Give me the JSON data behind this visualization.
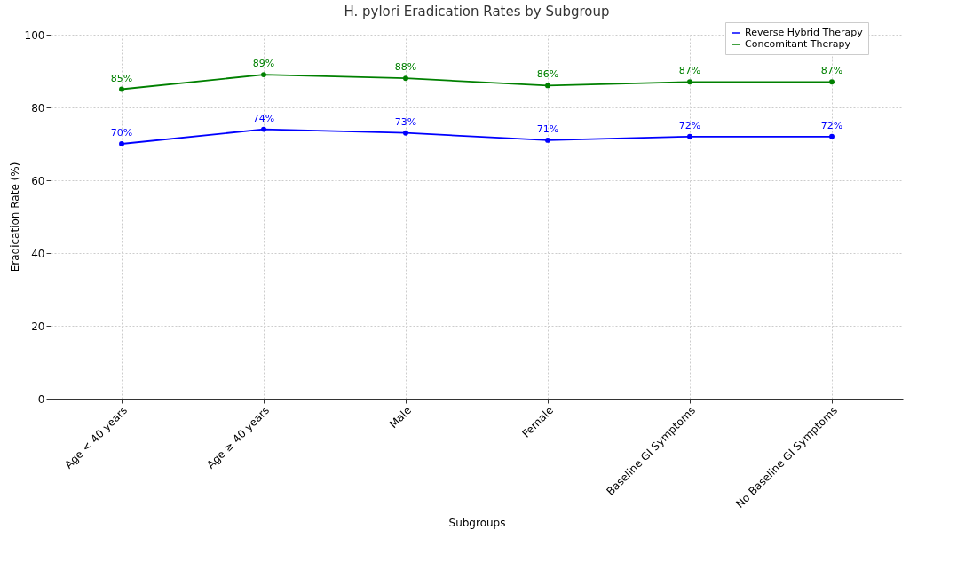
{
  "chart_data": {
    "type": "line",
    "title": "H. pylori Eradication Rates by Subgroup",
    "xlabel": "Subgroups",
    "ylabel": "Eradication Rate (%)",
    "categories": [
      "Age < 40 years",
      "Age ≥ 40 years",
      "Male",
      "Female",
      "Baseline GI Symptoms",
      "No Baseline GI Symptoms"
    ],
    "series": [
      {
        "name": "Reverse Hybrid Therapy",
        "color": "#0000ff",
        "values": [
          70,
          74,
          73,
          71,
          72,
          72
        ],
        "value_labels": [
          "70%",
          "74%",
          "73%",
          "71%",
          "72%",
          "72%"
        ]
      },
      {
        "name": "Concomitant Therapy",
        "color": "#008000",
        "values": [
          85,
          89,
          88,
          86,
          87,
          87
        ],
        "value_labels": [
          "85%",
          "89%",
          "88%",
          "86%",
          "87%",
          "87%"
        ]
      }
    ],
    "ylim": [
      0,
      100
    ],
    "yticks": [
      0,
      20,
      40,
      60,
      80,
      100
    ],
    "grid": true,
    "legend": "top right",
    "marker": "circle",
    "line_style": "solid"
  }
}
